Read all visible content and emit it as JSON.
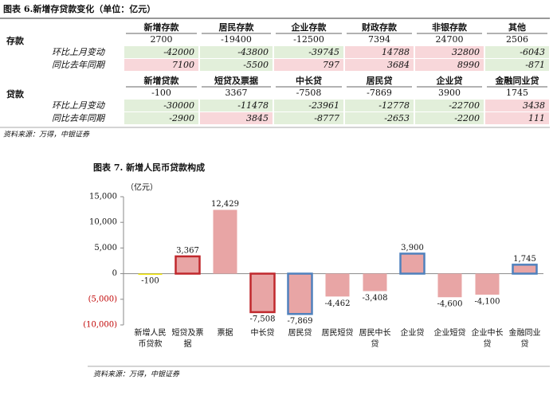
{
  "table": {
    "title": "图表 6.新增存贷款变化（单位：亿元）",
    "sections": [
      {
        "label": "存款",
        "headers": [
          "新增存款",
          "居民存款",
          "企业存款",
          "财政存款",
          "非银存款",
          "其他"
        ],
        "values": [
          2700,
          -19400,
          -12500,
          7394,
          24700,
          2506
        ],
        "rows": [
          {
            "label": "环比上月变动",
            "values": [
              -42000,
              -43800,
              -39745,
              14788,
              32800,
              -6043
            ]
          },
          {
            "label": "同比去年同期",
            "values": [
              7100,
              -5500,
              797,
              3684,
              8990,
              -871
            ]
          }
        ]
      },
      {
        "label": "贷款",
        "headers": [
          "新增贷款",
          "短贷及票据",
          "中长贷",
          "居民贷",
          "企业贷",
          "金融同业贷"
        ],
        "values": [
          -100,
          3367,
          -7508,
          -7869,
          3900,
          1745
        ],
        "rows": [
          {
            "label": "环比上月变动",
            "values": [
              -30000,
              -11478,
              -23961,
              -12778,
              -22700,
              3438
            ]
          },
          {
            "label": "同比去年同期",
            "values": [
              -2900,
              3845,
              -8777,
              -2653,
              -2200,
              111
            ]
          }
        ]
      }
    ],
    "source": "资料来源：万得，中银证券"
  },
  "chart_data": {
    "type": "bar",
    "title": "图表 7. 新增人民币贷款构成",
    "ylabel": "（亿元）",
    "categories": [
      "新增人民币贷款",
      "短贷及票据",
      "票据",
      "中长贷",
      "居民贷",
      "居民短贷",
      "居民中长贷",
      "企业贷",
      "企业短贷",
      "企业中长贷",
      "金融同业贷"
    ],
    "values": [
      -100,
      3367,
      12429,
      -7508,
      -7869,
      -4462,
      -3408,
      3900,
      -4600,
      -4100,
      1745
    ],
    "value_labels": [
      "-100",
      "3,367",
      "12,429",
      "-7,508",
      "-7,869",
      "-4,462",
      "-3,408",
      "3,900",
      "-4,600",
      "-4,100",
      "1,745"
    ],
    "colors": [
      "#f2e600",
      "#e8a5a5",
      "#e8a5a5",
      "#e8a5a5",
      "#e8a5a5",
      "#e8a5a5",
      "#e8a5a5",
      "#e8a5a5",
      "#e8a5a5",
      "#e8a5a5",
      "#e8a5a5"
    ],
    "edgecolors": [
      null,
      "#c0282d",
      null,
      "#c0282d",
      "#4f81bd",
      null,
      null,
      "#4f81bd",
      null,
      null,
      "#4f81bd"
    ],
    "ylim": [
      -10000,
      15000
    ],
    "yticks": [
      {
        "value": 15000,
        "label": "15,000"
      },
      {
        "value": 10000,
        "label": "10,000"
      },
      {
        "value": 5000,
        "label": "5,000"
      },
      0,
      {
        "value": -5000,
        "label": "(5,000)"
      },
      {
        "value": -10000,
        "label": "(10,000)"
      }
    ],
    "source": "资料来源：万得，中银证券"
  }
}
